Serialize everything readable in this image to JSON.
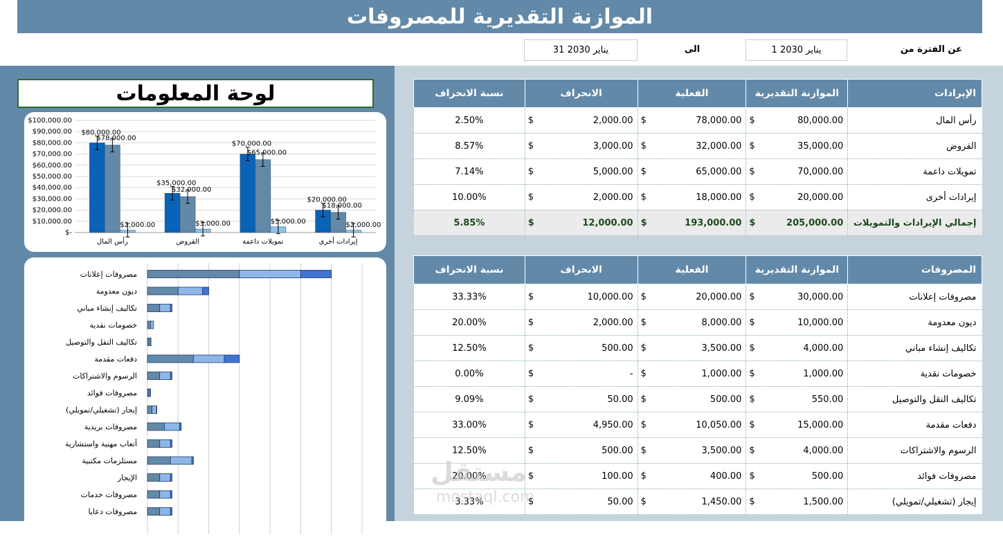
{
  "title": "الموازنة التقديرية للمصروفات",
  "period": {
    "from_label": "عن الفترة من",
    "from": "1 يناير 2030",
    "to_label": "الى",
    "to": "31 يناير 2030"
  },
  "dashboard_title": "لوحة المعلومات",
  "revenue_table": {
    "headers": [
      "الإيرادات",
      "الموازنة التقديرية",
      "الفعلية",
      "الانحراف",
      "نسبة الانحراف"
    ],
    "rows": [
      {
        "item": "رأس المال",
        "budget": "80,000.00",
        "actual": "78,000.00",
        "variance": "2,000.00",
        "pct": "2.50%"
      },
      {
        "item": "القروض",
        "budget": "35,000.00",
        "actual": "32,000.00",
        "variance": "3,000.00",
        "pct": "8.57%"
      },
      {
        "item": "تمويلات داعمة",
        "budget": "70,000.00",
        "actual": "65,000.00",
        "variance": "5,000.00",
        "pct": "7.14%"
      },
      {
        "item": "إيرادات أخرى",
        "budget": "20,000.00",
        "actual": "18,000.00",
        "variance": "2,000.00",
        "pct": "10.00%"
      }
    ],
    "total": {
      "item": "إجمالي الإيرادات والتمويلات",
      "budget": "205,000.00",
      "actual": "193,000.00",
      "variance": "12,000.00",
      "pct": "5.85%"
    }
  },
  "expense_table": {
    "headers": [
      "المصروفات",
      "الموازنة التقديرية",
      "الفعلية",
      "الانحراف",
      "نسبة الانحراف"
    ],
    "rows": [
      {
        "item": "مصروفات إعلانات",
        "budget": "30,000.00",
        "actual": "20,000.00",
        "variance": "10,000.00",
        "pct": "33.33%"
      },
      {
        "item": "ديون معدومة",
        "budget": "10,000.00",
        "actual": "8,000.00",
        "variance": "2,000.00",
        "pct": "20.00%"
      },
      {
        "item": "تكاليف إنشاء مباني",
        "budget": "4,000.00",
        "actual": "3,500.00",
        "variance": "500.00",
        "pct": "12.50%"
      },
      {
        "item": "خصومات نقدية",
        "budget": "1,000.00",
        "actual": "1,000.00",
        "variance": "-",
        "pct": "0.00%"
      },
      {
        "item": "تكاليف النقل والتوصيل",
        "budget": "550.00",
        "actual": "500.00",
        "variance": "50.00",
        "pct": "9.09%"
      },
      {
        "item": "دفعات مقدمة",
        "budget": "15,000.00",
        "actual": "10,050.00",
        "variance": "4,950.00",
        "pct": "33.00%"
      },
      {
        "item": "الرسوم والاشتراكات",
        "budget": "4,000.00",
        "actual": "3,500.00",
        "variance": "500.00",
        "pct": "12.50%"
      },
      {
        "item": "مصروفات فوائد",
        "budget": "500.00",
        "actual": "400.00",
        "variance": "100.00",
        "pct": "20.00%"
      },
      {
        "item": "إيجار (تشغيلي/تمويلي)",
        "budget": "1,500.00",
        "actual": "1,450.00",
        "variance": "50.00",
        "pct": "3.33%"
      }
    ]
  },
  "currency": "$",
  "watermark": {
    "logo": "مستقل",
    "domain": "mostaql.com"
  },
  "colors": {
    "header": "#6389a8",
    "budget_bar": "#0b63b8",
    "actual_bar": "#6389a8",
    "variance_bar": "#8ec6ea"
  },
  "chart_data": [
    {
      "type": "bar",
      "categories": [
        "رأس المال",
        "القروض",
        "تمويلات داعمة",
        "إيرادات أخرى"
      ],
      "series": [
        {
          "values": [
            80000,
            35000,
            70000,
            20000
          ]
        },
        {
          "values": [
            78000,
            32000,
            65000,
            18000
          ]
        },
        {
          "values": [
            2000,
            3000,
            5000,
            2000
          ]
        }
      ],
      "data_labels": [
        [
          "$80,000.00",
          "$35,000.00",
          "$70,000.00",
          "$20,000.00"
        ],
        [
          "$78,000.00",
          "$32,000.00",
          "$65,000.00",
          "$18,000.00"
        ],
        [
          "$2,000.00",
          "$3,000.00",
          "$5,000.00",
          "$2,000.00"
        ]
      ],
      "y_ticks": [
        "$-",
        "$10,000.00",
        "$20,000.00",
        "$30,000.00",
        "$40,000.00",
        "$50,000.00",
        "$60,000.00",
        "$70,000.00",
        "$80,000.00",
        "$90,000.00",
        "$100,000.00"
      ],
      "ylim": [
        0,
        100000
      ],
      "grid": true,
      "error_bars": true
    },
    {
      "type": "bar",
      "orientation": "horizontal",
      "stacked": true,
      "categories": [
        "مصروفات إعلانات",
        "ديون معدومة",
        "تكاليف إنشاء مباني",
        "خصومات نقدية",
        "تكاليف النقل والتوصيل",
        "دفعات مقدمة",
        "الرسوم والاشتراكات",
        "مصروفات فوائد",
        "إيجار (تشغيلي/تمويلي)",
        "مصروفات بريدية",
        "أتعاب مهنية واستشارية",
        "مستلزمات مكتبية",
        "الإيجار",
        "مصروفات خدمات",
        "مصروفات دعايا"
      ],
      "series": [
        {
          "values": [
            30000,
            10000,
            4000,
            1000,
            550,
            15000,
            4000,
            500,
            1500,
            5500,
            4000,
            7500,
            4000,
            4000,
            4000
          ]
        },
        {
          "values": [
            20000,
            8000,
            3500,
            1000,
            500,
            10050,
            3500,
            400,
            1450,
            5000,
            3500,
            7000,
            3500,
            3500,
            3500
          ]
        },
        {
          "values": [
            10000,
            2000,
            500,
            0,
            50,
            4950,
            500,
            100,
            50,
            500,
            500,
            500,
            500,
            500,
            500
          ]
        }
      ],
      "xlim": [
        0,
        70000
      ],
      "grid": true
    }
  ]
}
